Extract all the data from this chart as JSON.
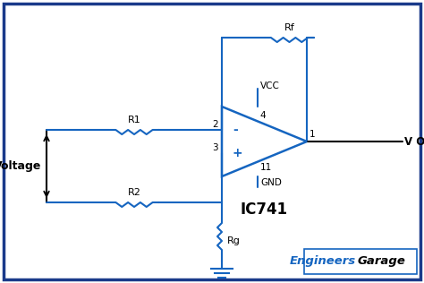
{
  "background_color": "#ffffff",
  "border_color": "#1a3a8a",
  "circuit_color": "#1565c0",
  "wire_color": "#000000",
  "figsize": [
    4.74,
    3.16
  ],
  "dpi": 100,
  "title": "IC741",
  "logo_engineers": "Engineers",
  "logo_garage": "Garage",
  "labels": {
    "voltage": "Voltage",
    "R1": "R1",
    "R2": "R2",
    "Rf": "Rf",
    "Rg": "Rg",
    "vout": "V OUT",
    "vcc": "VCC",
    "gnd": "GND",
    "pin2": "2",
    "pin3": "3",
    "pin4": "4",
    "pin1": "1",
    "pin11": "11",
    "minus": "-",
    "plus": "+"
  }
}
